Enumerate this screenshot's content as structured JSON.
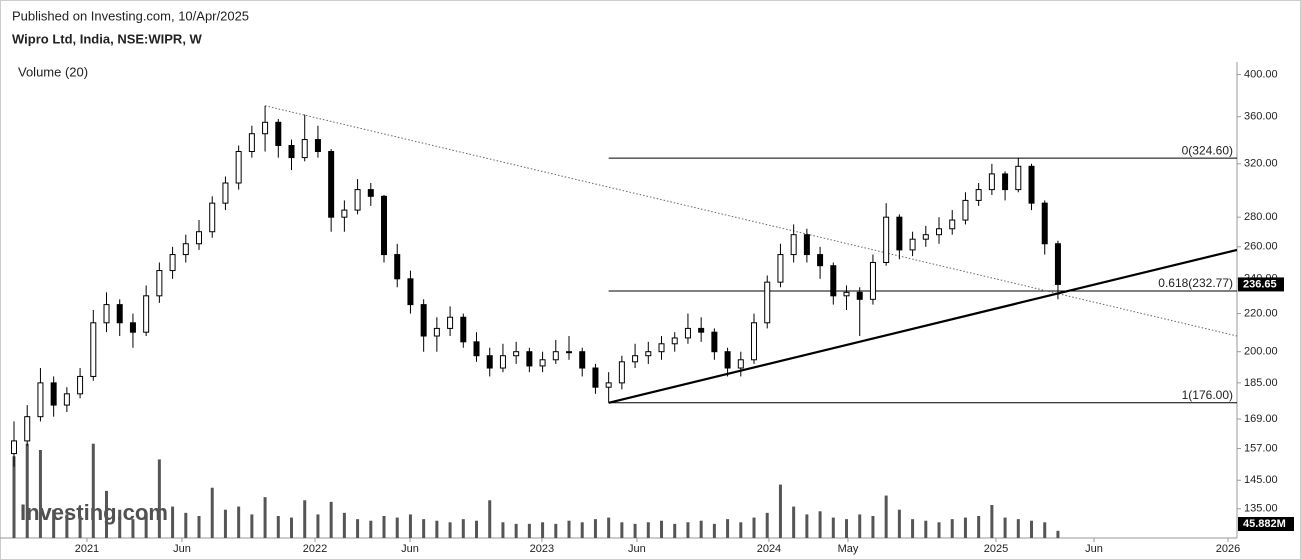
{
  "chart_data": {
    "type": "candlestick",
    "subtitle": "Published on Investing.com, 10/Apr/2025",
    "title": "Wipro Ltd, India, NSE:WIPR, W",
    "watermark": "Investing.com",
    "log": true,
    "ylim": [
      125.5,
      412.8
    ],
    "yticks": [
      {
        "value": 135,
        "label": "135.00"
      },
      {
        "value": 145,
        "label": "145.00"
      },
      {
        "value": 157,
        "label": "157.00"
      },
      {
        "value": 169,
        "label": "169.00"
      },
      {
        "value": 185,
        "label": "185.00"
      },
      {
        "value": 200,
        "label": "200.00"
      },
      {
        "value": 220,
        "label": "220.00"
      },
      {
        "value": 240,
        "label": "240.00"
      },
      {
        "value": 260,
        "label": "260.00"
      },
      {
        "value": 280,
        "label": "280.00"
      },
      {
        "value": 320,
        "label": "320.00"
      },
      {
        "value": 360,
        "label": "360.00"
      },
      {
        "value": 400,
        "label": "400.00"
      }
    ],
    "xlim": [
      -1.06,
      92.55
    ],
    "xticks": [
      {
        "value": 5.52,
        "label": "2021"
      },
      {
        "value": 12.71,
        "label": "Jun"
      },
      {
        "value": 22.78,
        "label": "2022"
      },
      {
        "value": 29.97,
        "label": "Jun"
      },
      {
        "value": 39.95,
        "label": "2023"
      },
      {
        "value": 47.14,
        "label": "Jun"
      },
      {
        "value": 57.13,
        "label": "2024"
      },
      {
        "value": 63.11,
        "label": "May"
      },
      {
        "value": 74.31,
        "label": "2025"
      },
      {
        "value": 81.73,
        "label": "Jun"
      },
      {
        "value": 91.87,
        "label": "2026"
      }
    ],
    "up_color": "#ffffff",
    "down_color": "#000000",
    "ohlc": [
      [
        155,
        168,
        150,
        160
      ],
      [
        160,
        175,
        158,
        170
      ],
      [
        170,
        192,
        168,
        185
      ],
      [
        185,
        188,
        170,
        175
      ],
      [
        175,
        183,
        172,
        180
      ],
      [
        180,
        192,
        178,
        188
      ],
      [
        188,
        222,
        186,
        215
      ],
      [
        215,
        232,
        210,
        225
      ],
      [
        225,
        228,
        208,
        215
      ],
      [
        215,
        220,
        202,
        210
      ],
      [
        210,
        236,
        208,
        230
      ],
      [
        230,
        250,
        226,
        245
      ],
      [
        245,
        260,
        240,
        255
      ],
      [
        255,
        268,
        250,
        262
      ],
      [
        262,
        278,
        258,
        270
      ],
      [
        270,
        295,
        266,
        290
      ],
      [
        290,
        310,
        285,
        305
      ],
      [
        305,
        335,
        300,
        330
      ],
      [
        330,
        352,
        325,
        345
      ],
      [
        345,
        370,
        330,
        355
      ],
      [
        355,
        358,
        325,
        335
      ],
      [
        335,
        340,
        315,
        325
      ],
      [
        325,
        362,
        322,
        340
      ],
      [
        340,
        352,
        325,
        330
      ],
      [
        330,
        332,
        270,
        280
      ],
      [
        280,
        292,
        270,
        285
      ],
      [
        285,
        308,
        282,
        300
      ],
      [
        300,
        305,
        288,
        295
      ],
      [
        295,
        296,
        250,
        255
      ],
      [
        255,
        262,
        235,
        240
      ],
      [
        240,
        245,
        220,
        225
      ],
      [
        225,
        228,
        200,
        208
      ],
      [
        208,
        218,
        200,
        212
      ],
      [
        212,
        224,
        208,
        218
      ],
      [
        218,
        220,
        202,
        205
      ],
      [
        205,
        210,
        195,
        198
      ],
      [
        198,
        202,
        188,
        192
      ],
      [
        192,
        204,
        190,
        198
      ],
      [
        198,
        205,
        194,
        200
      ],
      [
        200,
        202,
        190,
        193
      ],
      [
        193,
        200,
        190,
        196
      ],
      [
        196,
        206,
        194,
        200
      ],
      [
        200,
        208,
        196,
        200
      ],
      [
        200,
        202,
        188,
        192
      ],
      [
        192,
        194,
        180,
        183
      ],
      [
        183,
        190,
        176,
        185
      ],
      [
        185,
        198,
        182,
        195
      ],
      [
        195,
        204,
        192,
        198
      ],
      [
        198,
        205,
        194,
        200
      ],
      [
        200,
        208,
        196,
        204
      ],
      [
        204,
        210,
        200,
        207
      ],
      [
        207,
        220,
        204,
        212
      ],
      [
        212,
        218,
        205,
        210
      ],
      [
        210,
        212,
        196,
        200
      ],
      [
        200,
        202,
        188,
        192
      ],
      [
        192,
        200,
        188,
        196
      ],
      [
        196,
        220,
        194,
        215
      ],
      [
        215,
        242,
        212,
        238
      ],
      [
        238,
        262,
        235,
        255
      ],
      [
        255,
        275,
        250,
        268
      ],
      [
        268,
        272,
        250,
        255
      ],
      [
        255,
        260,
        240,
        248
      ],
      [
        248,
        250,
        225,
        230
      ],
      [
        230,
        236,
        222,
        232
      ],
      [
        232,
        235,
        208,
        228
      ],
      [
        228,
        255,
        225,
        250
      ],
      [
        250,
        290,
        248,
        280
      ],
      [
        280,
        282,
        252,
        258
      ],
      [
        258,
        270,
        254,
        265
      ],
      [
        265,
        274,
        260,
        268
      ],
      [
        268,
        280,
        262,
        272
      ],
      [
        272,
        285,
        268,
        278
      ],
      [
        278,
        298,
        275,
        292
      ],
      [
        292,
        305,
        288,
        300
      ],
      [
        300,
        320,
        296,
        312
      ],
      [
        312,
        314,
        292,
        300
      ],
      [
        300,
        325,
        298,
        318
      ],
      [
        318,
        320,
        285,
        290
      ],
      [
        290,
        292,
        255,
        262
      ],
      [
        262,
        264,
        228,
        236.65
      ]
    ],
    "volume": {
      "name": "Volume (20)",
      "axis": "y2",
      "color": "#555555",
      "values": [
        520,
        600,
        560,
        180,
        150,
        140,
        600,
        300,
        180,
        120,
        160,
        500,
        200,
        160,
        140,
        320,
        180,
        200,
        150,
        260,
        140,
        130,
        240,
        150,
        230,
        160,
        120,
        110,
        140,
        130,
        150,
        120,
        110,
        100,
        120,
        110,
        240,
        100,
        90,
        90,
        100,
        90,
        110,
        100,
        120,
        130,
        100,
        90,
        100,
        110,
        90,
        100,
        110,
        90,
        120,
        100,
        130,
        160,
        340,
        200,
        150,
        170,
        130,
        120,
        150,
        140,
        270,
        180,
        120,
        110,
        100,
        120,
        130,
        140,
        210,
        130,
        120,
        110,
        100,
        45.882
      ],
      "last_value_label": "45.882M"
    },
    "y2lim": [
      0,
      700
    ],
    "fib_levels": [
      {
        "label": "0(324.60)",
        "value": 324.6
      },
      {
        "label": "0.618(232.77)",
        "value": 232.77
      },
      {
        "label": "1(176.00)",
        "value": 176
      }
    ],
    "fib_start": 45,
    "trendlines": [
      {
        "style": "dotted",
        "x": [
          19,
          92.55
        ],
        "y": [
          370,
          208
        ]
      },
      {
        "style": "solid",
        "x": [
          45,
          92.55
        ],
        "y": [
          176,
          258
        ]
      }
    ]
  }
}
